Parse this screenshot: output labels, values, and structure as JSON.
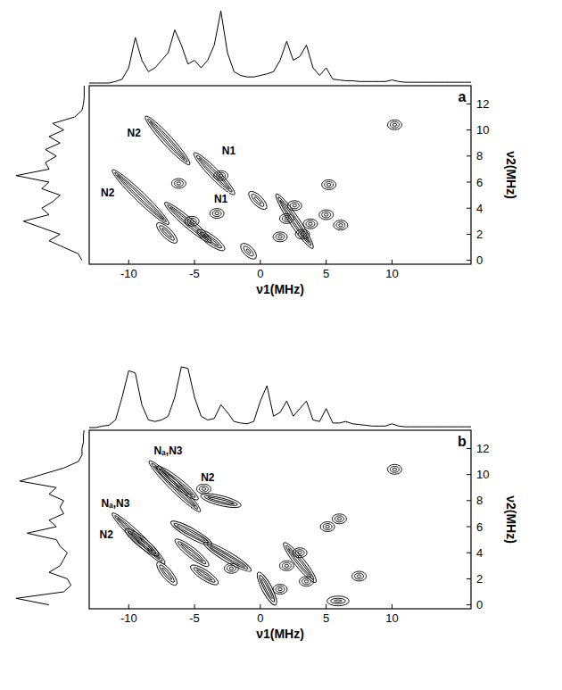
{
  "chart_data": [
    {
      "type": "contour",
      "panel": "a",
      "color": "#000000",
      "xlabel": "ν1(MHz)",
      "ylabel": "ν2(MHz)",
      "xlim": [
        -13,
        16
      ],
      "ylim": [
        -0.3,
        13.4
      ],
      "xticks": [
        -10,
        -5,
        0,
        5,
        10
      ],
      "yticks": [
        0,
        2,
        4,
        6,
        8,
        10,
        12
      ],
      "ridges": [
        {
          "x": [
            -8.5,
            -5.6
          ],
          "y": [
            10.8,
            7.6
          ]
        },
        {
          "x": [
            -11,
            -7.2
          ],
          "y": [
            6.7,
            3.0
          ]
        },
        {
          "x": [
            -4.8,
            -2.2
          ],
          "y": [
            8.0,
            5.3
          ]
        },
        {
          "x": [
            -7,
            -4
          ],
          "y": [
            4.2,
            1.6
          ]
        },
        {
          "x": [
            -7.6,
            -6.6
          ],
          "y": [
            2.6,
            1.6
          ]
        },
        {
          "x": [
            -4.5,
            -3
          ],
          "y": [
            2.1,
            1.0
          ]
        },
        {
          "x": [
            -0.6,
            0.2
          ],
          "y": [
            5.0,
            4.2
          ]
        },
        {
          "x": [
            1.4,
            3.8
          ],
          "y": [
            4.8,
            1.2
          ]
        },
        {
          "x": [
            -1.2,
            -0.6
          ],
          "y": [
            1.0,
            0.4
          ]
        }
      ],
      "peaks": [
        {
          "x": -3,
          "y": 6.5
        },
        {
          "x": -5.2,
          "y": 3.0
        },
        {
          "x": -3.3,
          "y": 3.6
        },
        {
          "x": 2,
          "y": 3.2
        },
        {
          "x": 3.2,
          "y": 2
        },
        {
          "x": 2.6,
          "y": 4.2
        },
        {
          "x": 3.8,
          "y": 2.8
        },
        {
          "x": 1.5,
          "y": 1.8
        },
        {
          "x": 5,
          "y": 3.5
        },
        {
          "x": 6.1,
          "y": 2.7
        },
        {
          "x": 5.2,
          "y": 5.8
        },
        {
          "x": 10.2,
          "y": 10.4
        },
        {
          "x": -6.2,
          "y": 5.9
        }
      ],
      "annotations": [
        {
          "text": "N2",
          "x": -9.6,
          "y": 9.8
        },
        {
          "text": "N1",
          "x": -2.4,
          "y": 8.4
        },
        {
          "text": "N2",
          "x": -11.6,
          "y": 5.2
        },
        {
          "text": "N1",
          "x": -3.0,
          "y": 4.7
        }
      ],
      "projection_x": {
        "x": [
          -13,
          -12.5,
          -12,
          -11.5,
          -11,
          -10.5,
          -10,
          -9.5,
          -9,
          -8.5,
          -8,
          -7.5,
          -7,
          -6.5,
          -6,
          -5.5,
          -5,
          -4.5,
          -4,
          -3.5,
          -3,
          -2.5,
          -2,
          -1.5,
          -1,
          -0.5,
          0,
          0.5,
          1,
          1.5,
          2,
          2.5,
          3,
          3.5,
          4,
          4.5,
          5,
          5.5,
          6,
          6.5,
          7,
          7.5,
          8,
          8.5,
          9,
          9.5,
          10,
          10.5,
          11,
          11.5,
          12,
          12.5,
          13,
          13.5,
          14,
          14.5,
          15,
          15.5,
          16
        ],
        "values": [
          0,
          0,
          0,
          0,
          0.02,
          0.05,
          0.2,
          0.6,
          0.3,
          0.15,
          0.2,
          0.3,
          0.4,
          0.7,
          0.5,
          0.25,
          0.3,
          0.2,
          0.3,
          0.5,
          0.95,
          0.4,
          0.15,
          0.1,
          0.08,
          0.08,
          0.1,
          0.12,
          0.15,
          0.3,
          0.55,
          0.3,
          0.35,
          0.5,
          0.2,
          0.1,
          0.2,
          0.05,
          0.04,
          0.03,
          0.03,
          0.02,
          0.02,
          0.02,
          0.02,
          0.02,
          0.04,
          0.02,
          0.01,
          0.01,
          0.01,
          0.01,
          0.01,
          0.01,
          0.01,
          0.01,
          0.01,
          0.01,
          0.01
        ]
      },
      "projection_y": {
        "y": [
          0,
          0.5,
          1,
          1.5,
          2,
          2.5,
          3,
          3.5,
          4,
          4.5,
          5,
          5.5,
          6,
          6.5,
          7,
          7.5,
          8,
          8.5,
          9,
          9.5,
          10,
          10.5,
          11,
          11.5,
          12,
          12.5,
          13,
          13.5
        ],
        "values": [
          0.05,
          0.1,
          0.3,
          0.5,
          0.35,
          0.6,
          0.85,
          0.5,
          0.6,
          0.45,
          0.35,
          0.6,
          0.5,
          0.95,
          0.5,
          0.55,
          0.4,
          0.55,
          0.35,
          0.5,
          0.3,
          0.45,
          0.15,
          0.05,
          0.03,
          0.02,
          0.02,
          0.02
        ]
      }
    },
    {
      "type": "contour",
      "panel": "b",
      "color": "#000000",
      "xlabel": "ν1(MHz)",
      "ylabel": "ν2(MHz)",
      "xlim": [
        -13,
        16
      ],
      "ylim": [
        -0.3,
        13.4
      ],
      "xticks": [
        -10,
        -5,
        0,
        5,
        10
      ],
      "yticks": [
        0,
        2,
        4,
        6,
        8,
        10,
        12
      ],
      "ridges": [
        {
          "x": [
            -8.2,
            -4.8
          ],
          "y": [
            10.8,
            7.4
          ]
        },
        {
          "x": [
            -7.6,
            -5
          ],
          "y": [
            10.4,
            8.3
          ]
        },
        {
          "x": [
            -11,
            -7.5
          ],
          "y": [
            6.8,
            3.4
          ]
        },
        {
          "x": [
            -10,
            -8
          ],
          "y": [
            5.6,
            4.0
          ]
        },
        {
          "x": [
            -4.2,
            -1.8
          ],
          "y": [
            8.3,
            7.7
          ]
        },
        {
          "x": [
            -6.5,
            -4
          ],
          "y": [
            6.2,
            4.8
          ]
        },
        {
          "x": [
            -6.2,
            -4.2
          ],
          "y": [
            4.8,
            3.2
          ]
        },
        {
          "x": [
            -4,
            -1
          ],
          "y": [
            4.6,
            2.8
          ]
        },
        {
          "x": [
            -7.6,
            -6.6
          ],
          "y": [
            3.0,
            1.8
          ]
        },
        {
          "x": [
            -5,
            -3.5
          ],
          "y": [
            2.8,
            1.8
          ]
        },
        {
          "x": [
            0,
            1
          ],
          "y": [
            2.2,
            0.3
          ]
        },
        {
          "x": [
            2,
            4
          ],
          "y": [
            4.5,
            2
          ]
        },
        {
          "x": [
            5.4,
            6.4
          ],
          "y": [
            0.3,
            0.3
          ]
        }
      ],
      "peaks": [
        {
          "x": -4.3,
          "y": 8.9
        },
        {
          "x": 2,
          "y": 3
        },
        {
          "x": 3,
          "y": 4
        },
        {
          "x": 1.5,
          "y": 1.2
        },
        {
          "x": 3.5,
          "y": 1.8
        },
        {
          "x": 6,
          "y": 6.6
        },
        {
          "x": 5.1,
          "y": 6.0
        },
        {
          "x": 7.5,
          "y": 2.2
        },
        {
          "x": 10.2,
          "y": 10.4
        },
        {
          "x": -2.2,
          "y": 2.8
        }
      ],
      "annotations": [
        {
          "text": "Nₐ,N3",
          "x": -7.0,
          "y": 11.8
        },
        {
          "text": "N2",
          "x": -4.0,
          "y": 9.8
        },
        {
          "text": "Nₐ,N3",
          "x": -11.0,
          "y": 7.8
        },
        {
          "text": "N2",
          "x": -11.7,
          "y": 5.4
        }
      ],
      "projection_x": {
        "x": [
          -13,
          -12.5,
          -12,
          -11.5,
          -11,
          -10.5,
          -10,
          -9.5,
          -9,
          -8.5,
          -8,
          -7.5,
          -7,
          -6.5,
          -6,
          -5.5,
          -5,
          -4.5,
          -4,
          -3.5,
          -3,
          -2.5,
          -2,
          -1.5,
          -1,
          -0.5,
          0,
          0.5,
          1,
          1.5,
          2,
          2.5,
          3,
          3.5,
          4,
          4.5,
          5,
          5.5,
          6,
          6.5,
          7,
          7.5,
          8,
          8.5,
          9,
          9.5,
          10,
          10.5,
          11,
          11.5,
          12,
          12.5,
          13,
          13.5,
          14,
          14.5,
          15,
          15.5,
          16
        ],
        "values": [
          0,
          0,
          0.02,
          0.03,
          0.1,
          0.4,
          0.75,
          0.72,
          0.3,
          0.1,
          0.08,
          0.1,
          0.15,
          0.4,
          0.8,
          0.78,
          0.4,
          0.15,
          0.1,
          0.12,
          0.3,
          0.2,
          0.08,
          0.06,
          0.05,
          0.08,
          0.35,
          0.55,
          0.15,
          0.2,
          0.35,
          0.15,
          0.25,
          0.35,
          0.1,
          0.08,
          0.25,
          0.06,
          0.06,
          0.08,
          0.05,
          0.04,
          0.03,
          0.02,
          0.02,
          0.02,
          0.05,
          0.02,
          0.01,
          0.01,
          0.01,
          0.01,
          0.01,
          0.01,
          0.01,
          0.01,
          0.01,
          0.01,
          0.01
        ]
      },
      "projection_y": {
        "y": [
          0,
          0.5,
          1,
          1.5,
          2,
          2.5,
          3,
          3.5,
          4,
          4.5,
          5,
          5.5,
          6,
          6.5,
          7,
          7.5,
          8,
          8.5,
          9,
          9.5,
          10,
          10.5,
          11,
          11.5,
          12,
          12.5,
          13,
          13.5
        ],
        "values": [
          0.5,
          0.95,
          0.3,
          0.2,
          0.25,
          0.5,
          0.35,
          0.3,
          0.25,
          0.35,
          0.4,
          0.8,
          0.4,
          0.5,
          0.3,
          0.35,
          0.3,
          0.5,
          0.4,
          0.9,
          0.6,
          0.3,
          0.1,
          0.05,
          0.05,
          0.03,
          0.03,
          0.02
        ]
      }
    }
  ]
}
